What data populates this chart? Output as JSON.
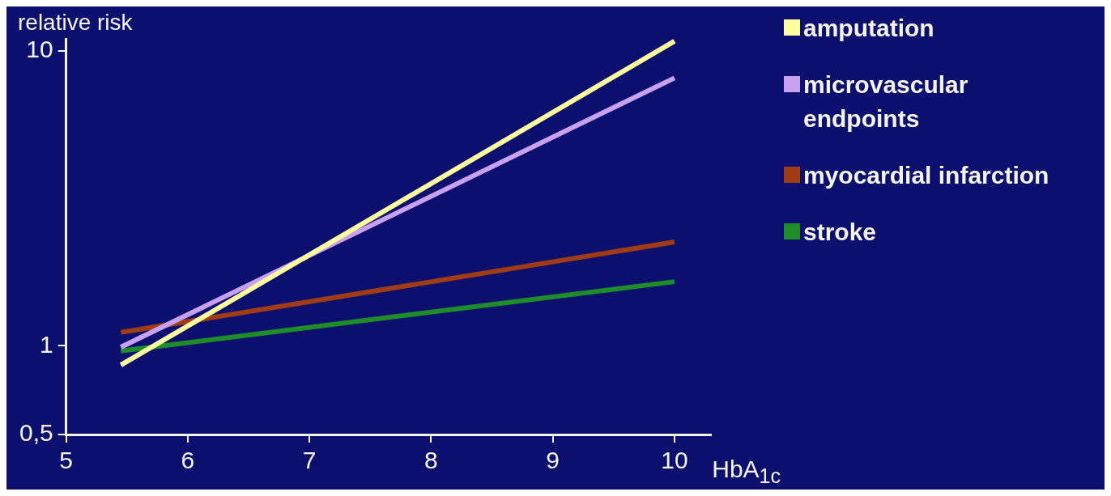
{
  "chart_data": {
    "type": "line",
    "xlabel": "HbA$_{1c}$",
    "ylabel": "relative risk",
    "x": [
      5.45,
      10
    ],
    "series": [
      {
        "name": "amputation",
        "color": "#ffffa0",
        "values": [
          0.86,
          10.8
        ]
      },
      {
        "name": "microvascular endpoints",
        "color": "#c8a0f0",
        "values": [
          0.99,
          8.1
        ]
      },
      {
        "name": "myocardial infarction",
        "color": "#a03c14",
        "values": [
          1.11,
          2.25
        ]
      },
      {
        "name": "stroke",
        "color": "#1e8c28",
        "values": [
          0.96,
          1.65
        ]
      }
    ],
    "xlim": [
      5,
      10.3
    ],
    "xticks": [
      5,
      6,
      7,
      8,
      9,
      10
    ],
    "ylim": [
      0.5,
      11
    ],
    "yticks": [
      {
        "value": 0.5,
        "label": "0,5"
      },
      1,
      10
    ],
    "log": "y",
    "grid": false,
    "legend": "right",
    "marker": "none",
    "line_style": "solid"
  }
}
